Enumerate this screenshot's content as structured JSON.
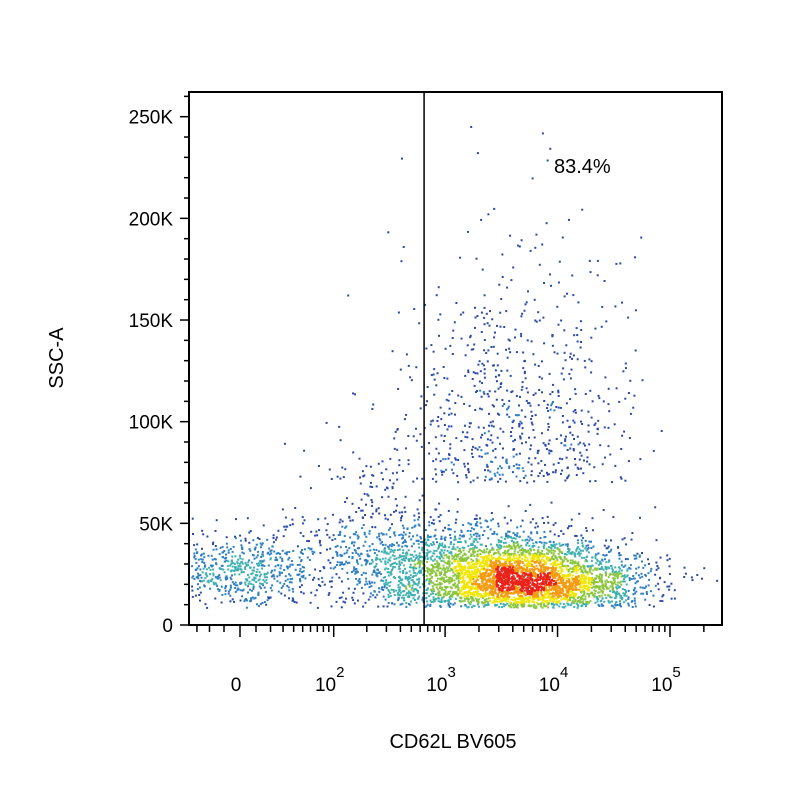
{
  "chart_data": {
    "type": "scatter",
    "subtype": "flow-cytometry-density-dot-plot",
    "xlabel": "CD62L BV605",
    "ylabel": "SSC-A",
    "x_scale": "biexponential",
    "y_scale": "linear",
    "ylim": [
      0,
      262144
    ],
    "y_ticks": [
      {
        "value": 0,
        "label": "0"
      },
      {
        "value": 50000,
        "label": "50K"
      },
      {
        "value": 100000,
        "label": "100K"
      },
      {
        "value": 150000,
        "label": "150K"
      },
      {
        "value": 200000,
        "label": "200K"
      },
      {
        "value": 250000,
        "label": "250K"
      }
    ],
    "x_ticks": [
      {
        "value": 0,
        "base": "0",
        "exp": ""
      },
      {
        "value": 100,
        "base": "10",
        "exp": "2"
      },
      {
        "value": 1000,
        "base": "10",
        "exp": "3"
      },
      {
        "value": 10000,
        "base": "10",
        "exp": "4"
      },
      {
        "value": 100000,
        "base": "10",
        "exp": "5"
      }
    ],
    "gate": {
      "x_threshold": 650,
      "percent_label": "83.4%"
    },
    "populations": [
      {
        "x_center": 6500,
        "y_center": 20000,
        "weight": 0.38
      },
      {
        "x_center": 3500,
        "y_center": 28000,
        "weight": 0.22
      },
      {
        "x_center": 600,
        "y_center": 28000,
        "weight": 0.14
      },
      {
        "x_center": 0,
        "y_center": 27000,
        "weight": 0.1
      },
      {
        "x_center": 4000,
        "y_center": 90000,
        "weight": 0.12
      },
      {
        "x_center": 200,
        "y_center": 45000,
        "weight": 0.04
      }
    ],
    "density_colors": [
      "#2b4aa8",
      "#2f7fc1",
      "#3fb0b0",
      "#8cc63f",
      "#f2e600",
      "#f39c12",
      "#e8231a"
    ],
    "grid": false,
    "legend": "none"
  }
}
